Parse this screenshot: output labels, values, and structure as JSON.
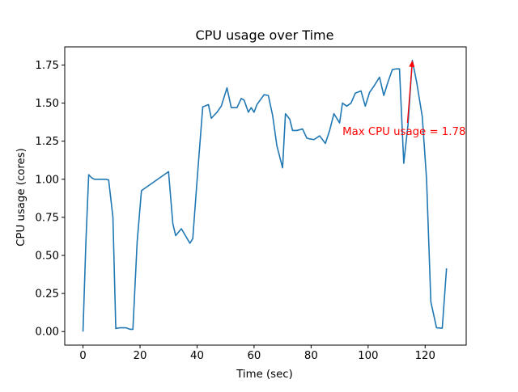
{
  "chart_data": {
    "type": "line",
    "title": "CPU usage over Time",
    "xlabel": "Time (sec)",
    "ylabel": "CPU usage (cores)",
    "xlim": [
      -6.4,
      134.4
    ],
    "ylim": [
      -0.089,
      1.869
    ],
    "xticks": [
      0,
      20,
      40,
      60,
      80,
      100,
      120
    ],
    "xtick_labels": [
      "0",
      "20",
      "40",
      "60",
      "80",
      "100",
      "120"
    ],
    "yticks": [
      0.0,
      0.25,
      0.5,
      0.75,
      1.0,
      1.25,
      1.5,
      1.75
    ],
    "ytick_labels": [
      "0.00",
      "0.25",
      "0.50",
      "0.75",
      "1.00",
      "1.25",
      "1.50",
      "1.75"
    ],
    "grid": false,
    "series": [
      {
        "color": "#1f77b4",
        "points": [
          [
            0,
            0.0
          ],
          [
            1,
            0.58
          ],
          [
            2,
            1.03
          ],
          [
            3,
            1.01
          ],
          [
            4,
            1.0
          ],
          [
            6,
            1.0
          ],
          [
            8,
            1.0
          ],
          [
            9,
            0.995
          ],
          [
            10.5,
            0.75
          ],
          [
            11.5,
            0.02
          ],
          [
            13,
            0.025
          ],
          [
            15,
            0.025
          ],
          [
            16.5,
            0.015
          ],
          [
            17.5,
            0.015
          ],
          [
            19,
            0.59
          ],
          [
            20.5,
            0.925
          ],
          [
            30,
            1.05
          ],
          [
            31.5,
            0.71
          ],
          [
            32.5,
            0.63
          ],
          [
            34.5,
            0.675
          ],
          [
            37.5,
            0.58
          ],
          [
            38.5,
            0.61
          ],
          [
            40,
            0.99
          ],
          [
            42,
            1.475
          ],
          [
            44,
            1.49
          ],
          [
            45,
            1.4
          ],
          [
            47,
            1.44
          ],
          [
            48.5,
            1.48
          ],
          [
            50.5,
            1.6
          ],
          [
            52,
            1.47
          ],
          [
            54,
            1.47
          ],
          [
            55.5,
            1.53
          ],
          [
            56.5,
            1.52
          ],
          [
            58,
            1.44
          ],
          [
            59,
            1.47
          ],
          [
            60,
            1.44
          ],
          [
            61,
            1.49
          ],
          [
            63.5,
            1.555
          ],
          [
            65,
            1.55
          ],
          [
            66.5,
            1.42
          ],
          [
            68,
            1.22
          ],
          [
            70,
            1.075
          ],
          [
            71,
            1.43
          ],
          [
            72.5,
            1.395
          ],
          [
            73.5,
            1.32
          ],
          [
            75,
            1.32
          ],
          [
            77,
            1.33
          ],
          [
            78.5,
            1.27
          ],
          [
            79.5,
            1.265
          ],
          [
            81,
            1.26
          ],
          [
            83,
            1.285
          ],
          [
            85,
            1.235
          ],
          [
            86.5,
            1.32
          ],
          [
            88,
            1.43
          ],
          [
            90,
            1.37
          ],
          [
            91,
            1.5
          ],
          [
            92.5,
            1.48
          ],
          [
            94,
            1.5
          ],
          [
            95.5,
            1.565
          ],
          [
            97.5,
            1.58
          ],
          [
            99,
            1.48
          ],
          [
            100.5,
            1.57
          ],
          [
            102,
            1.61
          ],
          [
            104,
            1.67
          ],
          [
            105.5,
            1.55
          ],
          [
            107,
            1.64
          ],
          [
            108.5,
            1.72
          ],
          [
            110,
            1.725
          ],
          [
            111,
            1.725
          ],
          [
            112.5,
            1.105
          ],
          [
            114,
            1.36
          ],
          [
            115.5,
            1.78
          ],
          [
            117,
            1.64
          ],
          [
            119,
            1.41
          ],
          [
            120.5,
            1.0
          ],
          [
            122,
            0.195
          ],
          [
            124,
            0.025
          ],
          [
            126,
            0.022
          ],
          [
            127.5,
            0.415
          ]
        ]
      }
    ],
    "annotations": [
      {
        "text": "Max CPU usage = 1.78",
        "xy": [
          115.5,
          1.78
        ],
        "xytext": [
          91,
          1.29
        ],
        "arrow_tail": [
          113.8,
          1.37
        ],
        "color": "#ff0000"
      }
    ]
  }
}
